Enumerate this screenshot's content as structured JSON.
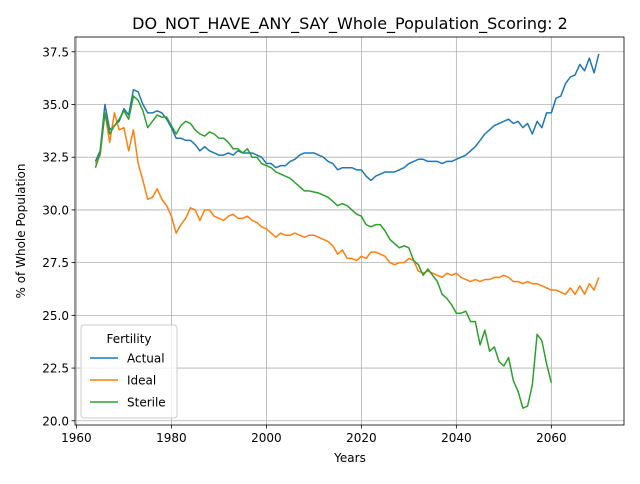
{
  "chart_data": {
    "type": "line",
    "title": "DO_NOT_HAVE_ANY_SAY_Whole_Population_Scoring: 2",
    "xlabel": "Years",
    "ylabel": "% of Whole Population",
    "xlim": [
      1959.7,
      2075.3
    ],
    "ylim": [
      19.8,
      38.2
    ],
    "xticks": [
      1960,
      1980,
      2000,
      2020,
      2040,
      2060
    ],
    "yticks": [
      20.0,
      22.5,
      25.0,
      27.5,
      30.0,
      32.5,
      35.0,
      37.5
    ],
    "grid": true,
    "legend": {
      "title": "Fertility",
      "placement": "lower-left"
    },
    "series": [
      {
        "name": "Actual",
        "color": "#1f77b4",
        "points": [
          [
            1964,
            32.3
          ],
          [
            1965,
            32.8
          ],
          [
            1966,
            35.0
          ],
          [
            1967,
            33.8
          ],
          [
            1968,
            34.0
          ],
          [
            1969,
            34.2
          ],
          [
            1970,
            34.8
          ],
          [
            1971,
            34.5
          ],
          [
            1972,
            35.7
          ],
          [
            1973,
            35.6
          ],
          [
            1974,
            35.0
          ],
          [
            1975,
            34.6
          ],
          [
            1976,
            34.6
          ],
          [
            1977,
            34.7
          ],
          [
            1978,
            34.6
          ],
          [
            1979,
            34.3
          ],
          [
            1980,
            33.9
          ],
          [
            1981,
            33.4
          ],
          [
            1982,
            33.4
          ],
          [
            1983,
            33.3
          ],
          [
            1984,
            33.3
          ],
          [
            1985,
            33.1
          ],
          [
            1986,
            32.8
          ],
          [
            1987,
            33.0
          ],
          [
            1988,
            32.8
          ],
          [
            1989,
            32.7
          ],
          [
            1990,
            32.6
          ],
          [
            1991,
            32.6
          ],
          [
            1992,
            32.7
          ],
          [
            1993,
            32.6
          ],
          [
            1994,
            32.8
          ],
          [
            1995,
            32.7
          ],
          [
            1996,
            32.7
          ],
          [
            1997,
            32.7
          ],
          [
            1998,
            32.6
          ],
          [
            1999,
            32.5
          ],
          [
            2000,
            32.2
          ],
          [
            2001,
            32.2
          ],
          [
            2002,
            32.0
          ],
          [
            2003,
            32.1
          ],
          [
            2004,
            32.1
          ],
          [
            2005,
            32.3
          ],
          [
            2006,
            32.4
          ],
          [
            2007,
            32.6
          ],
          [
            2008,
            32.7
          ],
          [
            2009,
            32.7
          ],
          [
            2010,
            32.7
          ],
          [
            2011,
            32.6
          ],
          [
            2012,
            32.5
          ],
          [
            2013,
            32.3
          ],
          [
            2014,
            32.2
          ],
          [
            2015,
            31.9
          ],
          [
            2016,
            32.0
          ],
          [
            2017,
            32.0
          ],
          [
            2018,
            32.0
          ],
          [
            2019,
            31.9
          ],
          [
            2020,
            31.9
          ],
          [
            2021,
            31.6
          ],
          [
            2022,
            31.4
          ],
          [
            2023,
            31.6
          ],
          [
            2024,
            31.7
          ],
          [
            2025,
            31.8
          ],
          [
            2026,
            31.8
          ],
          [
            2027,
            31.8
          ],
          [
            2028,
            31.9
          ],
          [
            2029,
            32.0
          ],
          [
            2030,
            32.2
          ],
          [
            2031,
            32.3
          ],
          [
            2032,
            32.4
          ],
          [
            2033,
            32.4
          ],
          [
            2034,
            32.3
          ],
          [
            2035,
            32.3
          ],
          [
            2036,
            32.3
          ],
          [
            2037,
            32.2
          ],
          [
            2038,
            32.3
          ],
          [
            2039,
            32.3
          ],
          [
            2040,
            32.4
          ],
          [
            2041,
            32.5
          ],
          [
            2042,
            32.6
          ],
          [
            2043,
            32.8
          ],
          [
            2044,
            33.0
          ],
          [
            2045,
            33.3
          ],
          [
            2046,
            33.6
          ],
          [
            2047,
            33.8
          ],
          [
            2048,
            34.0
          ],
          [
            2049,
            34.1
          ],
          [
            2050,
            34.2
          ],
          [
            2051,
            34.3
          ],
          [
            2052,
            34.1
          ],
          [
            2053,
            34.2
          ],
          [
            2054,
            33.9
          ],
          [
            2055,
            34.1
          ],
          [
            2056,
            33.6
          ],
          [
            2057,
            34.2
          ],
          [
            2058,
            33.9
          ],
          [
            2059,
            34.6
          ],
          [
            2060,
            34.6
          ],
          [
            2061,
            35.3
          ],
          [
            2062,
            35.4
          ],
          [
            2063,
            36.0
          ],
          [
            2064,
            36.3
          ],
          [
            2065,
            36.4
          ],
          [
            2066,
            36.9
          ],
          [
            2067,
            36.6
          ],
          [
            2068,
            37.2
          ],
          [
            2069,
            36.5
          ],
          [
            2070,
            37.4
          ]
        ]
      },
      {
        "name": "Ideal",
        "color": "#ff7f0e",
        "points": [
          [
            1964,
            32.2
          ],
          [
            1965,
            32.6
          ],
          [
            1966,
            34.6
          ],
          [
            1967,
            33.2
          ],
          [
            1968,
            34.6
          ],
          [
            1969,
            33.8
          ],
          [
            1970,
            33.9
          ],
          [
            1971,
            32.8
          ],
          [
            1972,
            33.8
          ],
          [
            1973,
            32.2
          ],
          [
            1974,
            31.4
          ],
          [
            1975,
            30.5
          ],
          [
            1976,
            30.6
          ],
          [
            1977,
            31.0
          ],
          [
            1978,
            30.5
          ],
          [
            1979,
            30.2
          ],
          [
            1980,
            29.7
          ],
          [
            1981,
            28.9
          ],
          [
            1982,
            29.3
          ],
          [
            1983,
            29.6
          ],
          [
            1984,
            30.1
          ],
          [
            1985,
            30.0
          ],
          [
            1986,
            29.5
          ],
          [
            1987,
            30.0
          ],
          [
            1988,
            30.0
          ],
          [
            1989,
            29.7
          ],
          [
            1990,
            29.6
          ],
          [
            1991,
            29.5
          ],
          [
            1992,
            29.7
          ],
          [
            1993,
            29.8
          ],
          [
            1994,
            29.6
          ],
          [
            1995,
            29.6
          ],
          [
            1996,
            29.7
          ],
          [
            1997,
            29.5
          ],
          [
            1998,
            29.4
          ],
          [
            1999,
            29.2
          ],
          [
            2000,
            29.1
          ],
          [
            2001,
            28.9
          ],
          [
            2002,
            28.7
          ],
          [
            2003,
            28.9
          ],
          [
            2004,
            28.8
          ],
          [
            2005,
            28.8
          ],
          [
            2006,
            28.9
          ],
          [
            2007,
            28.8
          ],
          [
            2008,
            28.7
          ],
          [
            2009,
            28.8
          ],
          [
            2010,
            28.8
          ],
          [
            2011,
            28.7
          ],
          [
            2012,
            28.6
          ],
          [
            2013,
            28.5
          ],
          [
            2014,
            28.3
          ],
          [
            2015,
            27.9
          ],
          [
            2016,
            28.1
          ],
          [
            2017,
            27.7
          ],
          [
            2018,
            27.7
          ],
          [
            2019,
            27.6
          ],
          [
            2020,
            27.8
          ],
          [
            2021,
            27.7
          ],
          [
            2022,
            28.0
          ],
          [
            2023,
            28.0
          ],
          [
            2024,
            27.9
          ],
          [
            2025,
            27.8
          ],
          [
            2026,
            27.5
          ],
          [
            2027,
            27.4
          ],
          [
            2028,
            27.5
          ],
          [
            2029,
            27.5
          ],
          [
            2030,
            27.7
          ],
          [
            2031,
            27.6
          ],
          [
            2032,
            27.1
          ],
          [
            2033,
            27.0
          ],
          [
            2034,
            27.1
          ],
          [
            2035,
            27.0
          ],
          [
            2036,
            26.9
          ],
          [
            2037,
            26.8
          ],
          [
            2038,
            27.0
          ],
          [
            2039,
            26.9
          ],
          [
            2040,
            27.0
          ],
          [
            2041,
            26.8
          ],
          [
            2042,
            26.7
          ],
          [
            2043,
            26.6
          ],
          [
            2044,
            26.7
          ],
          [
            2045,
            26.6
          ],
          [
            2046,
            26.7
          ],
          [
            2047,
            26.7
          ],
          [
            2048,
            26.8
          ],
          [
            2049,
            26.8
          ],
          [
            2050,
            26.9
          ],
          [
            2051,
            26.8
          ],
          [
            2052,
            26.6
          ],
          [
            2053,
            26.6
          ],
          [
            2054,
            26.5
          ],
          [
            2055,
            26.6
          ],
          [
            2056,
            26.5
          ],
          [
            2057,
            26.5
          ],
          [
            2058,
            26.4
          ],
          [
            2059,
            26.3
          ],
          [
            2060,
            26.2
          ],
          [
            2061,
            26.2
          ],
          [
            2062,
            26.1
          ],
          [
            2063,
            26.0
          ],
          [
            2064,
            26.3
          ],
          [
            2065,
            26.0
          ],
          [
            2066,
            26.4
          ],
          [
            2067,
            26.0
          ],
          [
            2068,
            26.5
          ],
          [
            2069,
            26.2
          ],
          [
            2070,
            26.8
          ]
        ]
      },
      {
        "name": "Sterile",
        "color": "#2ca02c",
        "points": [
          [
            1964,
            32.0
          ],
          [
            1965,
            32.7
          ],
          [
            1966,
            34.6
          ],
          [
            1967,
            33.6
          ],
          [
            1968,
            34.0
          ],
          [
            1969,
            34.3
          ],
          [
            1970,
            34.7
          ],
          [
            1971,
            34.3
          ],
          [
            1972,
            35.4
          ],
          [
            1973,
            35.2
          ],
          [
            1974,
            34.7
          ],
          [
            1975,
            33.9
          ],
          [
            1976,
            34.2
          ],
          [
            1977,
            34.5
          ],
          [
            1978,
            34.4
          ],
          [
            1979,
            34.4
          ],
          [
            1980,
            34.0
          ],
          [
            1981,
            33.6
          ],
          [
            1982,
            34.0
          ],
          [
            1983,
            34.2
          ],
          [
            1984,
            34.1
          ],
          [
            1985,
            33.8
          ],
          [
            1986,
            33.6
          ],
          [
            1987,
            33.5
          ],
          [
            1988,
            33.7
          ],
          [
            1989,
            33.6
          ],
          [
            1990,
            33.4
          ],
          [
            1991,
            33.4
          ],
          [
            1992,
            33.2
          ],
          [
            1993,
            32.9
          ],
          [
            1994,
            32.9
          ],
          [
            1995,
            32.7
          ],
          [
            1996,
            32.9
          ],
          [
            1997,
            32.5
          ],
          [
            1998,
            32.5
          ],
          [
            1999,
            32.2
          ],
          [
            2000,
            32.1
          ],
          [
            2001,
            32.0
          ],
          [
            2002,
            31.8
          ],
          [
            2003,
            31.7
          ],
          [
            2004,
            31.6
          ],
          [
            2005,
            31.5
          ],
          [
            2006,
            31.3
          ],
          [
            2007,
            31.1
          ],
          [
            2008,
            30.9
          ],
          [
            2009,
            30.9
          ],
          [
            2010,
            30.85
          ],
          [
            2011,
            30.8
          ],
          [
            2012,
            30.7
          ],
          [
            2013,
            30.6
          ],
          [
            2014,
            30.4
          ],
          [
            2015,
            30.2
          ],
          [
            2016,
            30.3
          ],
          [
            2017,
            30.2
          ],
          [
            2018,
            30.0
          ],
          [
            2019,
            29.8
          ],
          [
            2020,
            29.7
          ],
          [
            2021,
            29.3
          ],
          [
            2022,
            29.2
          ],
          [
            2023,
            29.3
          ],
          [
            2024,
            29.3
          ],
          [
            2025,
            29.0
          ],
          [
            2026,
            28.6
          ],
          [
            2027,
            28.4
          ],
          [
            2028,
            28.2
          ],
          [
            2029,
            28.3
          ],
          [
            2030,
            28.2
          ],
          [
            2031,
            27.6
          ],
          [
            2032,
            27.4
          ],
          [
            2033,
            26.9
          ],
          [
            2034,
            27.2
          ],
          [
            2035,
            26.9
          ],
          [
            2036,
            26.6
          ],
          [
            2037,
            26.0
          ],
          [
            2038,
            25.8
          ],
          [
            2039,
            25.5
          ],
          [
            2040,
            25.1
          ],
          [
            2041,
            25.1
          ],
          [
            2042,
            25.2
          ],
          [
            2043,
            24.7
          ],
          [
            2044,
            24.7
          ],
          [
            2045,
            23.6
          ],
          [
            2046,
            24.3
          ],
          [
            2047,
            23.3
          ],
          [
            2048,
            23.5
          ],
          [
            2049,
            22.8
          ],
          [
            2050,
            22.6
          ],
          [
            2051,
            23.0
          ],
          [
            2052,
            21.9
          ],
          [
            2053,
            21.4
          ],
          [
            2054,
            20.6
          ],
          [
            2055,
            20.7
          ],
          [
            2056,
            21.7
          ],
          [
            2057,
            24.1
          ],
          [
            2058,
            23.8
          ],
          [
            2059,
            22.7
          ],
          [
            2060,
            21.8
          ]
        ]
      }
    ]
  }
}
